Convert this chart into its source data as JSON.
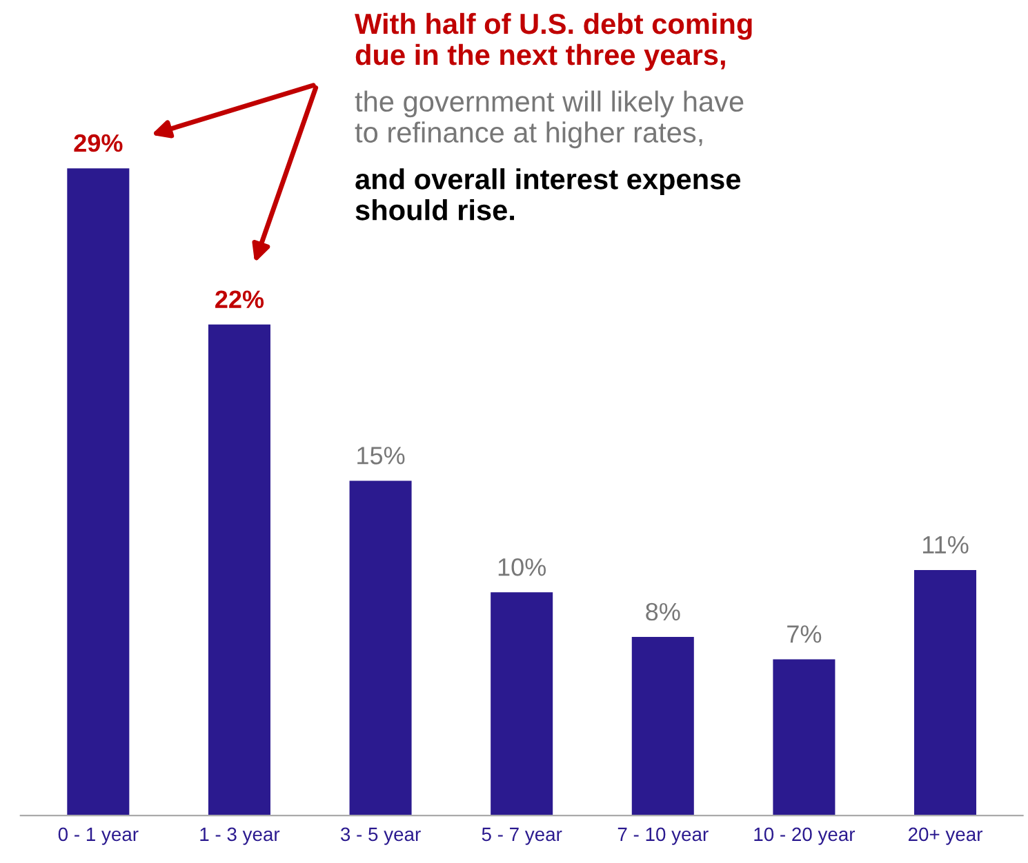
{
  "chart_data": {
    "type": "bar",
    "categories": [
      "0 - 1 year",
      "1 - 3 year",
      "3 - 5 year",
      "5 - 7 year",
      "7 - 10 year",
      "10 - 20 year",
      "20+ year"
    ],
    "values": [
      29,
      22,
      15,
      10,
      8,
      7,
      11
    ],
    "color": "#2b1a8f",
    "value_labels": [
      "29%",
      "22%",
      "15%",
      "10%",
      "8%",
      "7%",
      "11%"
    ],
    "annotations": [
      "With half of U.S. debt coming\ndue in the next three years,",
      "the government will likely have\nto refinance at higher rates,",
      "and overall interest expense\nshould rise."
    ],
    "grid": false
  }
}
